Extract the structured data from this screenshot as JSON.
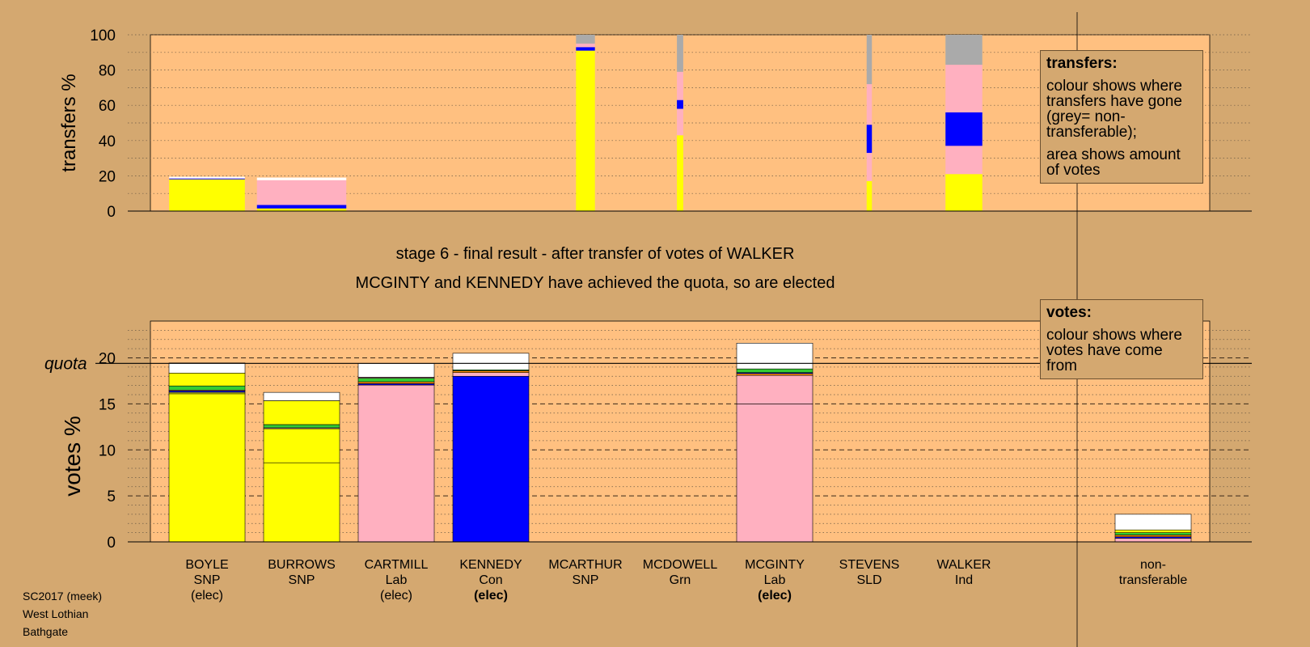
{
  "chart_data": [
    {
      "type": "bar",
      "stacked": true,
      "ylabel": "transfers %",
      "ylim": [
        0,
        100
      ],
      "yticks": [
        0,
        20,
        40,
        60,
        80,
        100
      ],
      "categories": [
        "BOYLE",
        "BURROWS",
        "CARTMILL",
        "KENNEDY",
        "MCARTHUR",
        "MCDOWELL",
        "MCGINTY",
        "STEVENS",
        "WALKER"
      ],
      "grid": true,
      "note": "bar widths show amount of votes transferred",
      "bars": [
        {
          "candidate": "BOYLE",
          "width_rel": 0.72,
          "segments": [
            {
              "party": "SNP",
              "value": 18
            },
            {
              "party": "Con",
              "value": 0.5
            },
            {
              "party": "Ind",
              "value": 1
            }
          ]
        },
        {
          "candidate": "BURROWS",
          "width_rel": 0.85,
          "segments": [
            {
              "party": "SNP",
              "value": 1.5
            },
            {
              "party": "Con",
              "value": 2
            },
            {
              "party": "Lab",
              "value": 14
            },
            {
              "party": "Ind",
              "value": 1.5
            }
          ]
        },
        {
          "candidate": "MCARTHUR",
          "width_rel": 0.18,
          "segments": [
            {
              "party": "SNP",
              "value": 91
            },
            {
              "party": "Con",
              "value": 2
            },
            {
              "party": "Lab",
              "value": 2
            },
            {
              "party": "non-transferable",
              "value": 5
            }
          ]
        },
        {
          "candidate": "MCDOWELL",
          "width_rel": 0.06,
          "segments": [
            {
              "party": "SNP",
              "value": 43
            },
            {
              "party": "Lab",
              "value": 15
            },
            {
              "party": "Con",
              "value": 5
            },
            {
              "party": "Lab",
              "value": 16
            },
            {
              "party": "non-transferable",
              "value": 21
            }
          ]
        },
        {
          "candidate": "STEVENS",
          "width_rel": 0.05,
          "segments": [
            {
              "party": "SNP",
              "value": 17
            },
            {
              "party": "Lab",
              "value": 16
            },
            {
              "party": "Con",
              "value": 16
            },
            {
              "party": "Lab",
              "value": 23
            },
            {
              "party": "non-transferable",
              "value": 28
            }
          ]
        },
        {
          "candidate": "WALKER",
          "width_rel": 0.35,
          "segments": [
            {
              "party": "SNP",
              "value": 21
            },
            {
              "party": "Lab",
              "value": 16
            },
            {
              "party": "Con",
              "value": 19
            },
            {
              "party": "Lab",
              "value": 27
            },
            {
              "party": "non-transferable",
              "value": 17
            }
          ]
        }
      ]
    },
    {
      "type": "bar",
      "stacked": true,
      "ylabel": "votes %",
      "ylim": [
        0,
        24
      ],
      "yticks": [
        0,
        5,
        10,
        15,
        20
      ],
      "quota": 19.4,
      "quota_label": "quota",
      "categories": [
        "BOYLE",
        "BURROWS",
        "CARTMILL",
        "KENNEDY",
        "MCARTHUR",
        "MCDOWELL",
        "MCGINTY",
        "STEVENS",
        "WALKER",
        "non-transferable"
      ],
      "bars": [
        {
          "candidate": "BOYLE",
          "segments": [
            {
              "party": "SNP",
              "value": 16.1
            },
            {
              "party": "SNP",
              "value": 0.15
            },
            {
              "party": "Con",
              "value": 0.15
            },
            {
              "party": "Lab",
              "value": 0.1
            },
            {
              "party": "Grn",
              "value": 0.45
            },
            {
              "party": "SNP",
              "value": 1.4
            },
            {
              "party": "Ind",
              "value": 1.1
            }
          ]
        },
        {
          "candidate": "BURROWS",
          "segments": [
            {
              "party": "SNP",
              "value": 8.6
            },
            {
              "party": "SNP",
              "value": 3.7
            },
            {
              "party": "Lab",
              "value": 0.1
            },
            {
              "party": "Grn",
              "value": 0.35
            },
            {
              "party": "SNP",
              "value": 2.6
            },
            {
              "party": "Ind",
              "value": 0.9
            }
          ]
        },
        {
          "candidate": "CARTMILL",
          "segments": [
            {
              "party": "Lab",
              "value": 17.05
            },
            {
              "party": "Con",
              "value": 0.15
            },
            {
              "party": "SLD",
              "value": 0.2
            },
            {
              "party": "Grn",
              "value": 0.4
            },
            {
              "party": "Lab",
              "value": 0.1
            },
            {
              "party": "Ind",
              "value": 1.5
            }
          ]
        },
        {
          "candidate": "KENNEDY",
          "segments": [
            {
              "party": "Con",
              "value": 18.0
            },
            {
              "party": "Lab",
              "value": 0.4
            },
            {
              "party": "SLD",
              "value": 0.2
            },
            {
              "party": "Grn",
              "value": 0.1
            },
            {
              "party": "Ind",
              "value": 1.8
            }
          ]
        },
        {
          "candidate": "MCARTHUR",
          "segments": []
        },
        {
          "candidate": "MCDOWELL",
          "segments": []
        },
        {
          "candidate": "MCGINTY",
          "segments": [
            {
              "party": "Lab",
              "value": 15.0
            },
            {
              "party": "Lab",
              "value": 3.1
            },
            {
              "party": "SLD",
              "value": 0.2
            },
            {
              "party": "Con",
              "value": 0.1
            },
            {
              "party": "Grn",
              "value": 0.4
            },
            {
              "party": "Ind",
              "value": 2.8
            }
          ]
        },
        {
          "candidate": "STEVENS",
          "segments": []
        },
        {
          "candidate": "WALKER",
          "segments": []
        },
        {
          "candidate": "non-transferable",
          "segments": [
            {
              "party": "Lab",
              "value": 0.4
            },
            {
              "party": "Con",
              "value": 0.15
            },
            {
              "party": "SLD",
              "value": 0.2
            },
            {
              "party": "Grn",
              "value": 0.25
            },
            {
              "party": "SNP",
              "value": 0.3
            },
            {
              "party": "Ind",
              "value": 1.7
            }
          ]
        }
      ]
    }
  ],
  "colors": {
    "SNP": "#ffff00",
    "Lab": "#ffb0c0",
    "Con": "#0000ff",
    "Grn": "#33cc33",
    "SLD": "#ff8c00",
    "Ind": "#ffffff",
    "non-transferable": "#aaaaaa",
    "background": "#d4a870",
    "plot_area": "#ffc080"
  },
  "candidates": [
    {
      "name": "BOYLE",
      "party": "SNP",
      "status": "(elec)",
      "bold": false
    },
    {
      "name": "BURROWS",
      "party": "SNP",
      "status": "",
      "bold": false
    },
    {
      "name": "CARTMILL",
      "party": "Lab",
      "status": "(elec)",
      "bold": false
    },
    {
      "name": "KENNEDY",
      "party": "Con",
      "status": "(elec)",
      "bold": true
    },
    {
      "name": "MCARTHUR",
      "party": "SNP",
      "status": "",
      "bold": false
    },
    {
      "name": "MCDOWELL",
      "party": "Grn",
      "status": "",
      "bold": false
    },
    {
      "name": "MCGINTY",
      "party": "Lab",
      "status": "(elec)",
      "bold": true
    },
    {
      "name": "STEVENS",
      "party": "SLD",
      "status": "",
      "bold": false
    },
    {
      "name": "WALKER",
      "party": "Ind",
      "status": "",
      "bold": false
    }
  ],
  "nontransferable_label": [
    "non-",
    "transferable"
  ],
  "headline": {
    "line1": "stage 6 - final result - after transfer of votes of WALKER",
    "line2": "MCGINTY and KENNEDY have achieved the quota, so are elected"
  },
  "legend_transfers": {
    "title": "transfers:",
    "p1": "colour shows where transfers have gone (grey= non-transferable);",
    "p2": "area shows amount of votes"
  },
  "legend_votes": {
    "title": "votes:",
    "p1": "colour shows where votes have come from"
  },
  "source": {
    "line1": "SC2017 (meek)",
    "line2": "West Lothian",
    "line3": "Bathgate"
  }
}
